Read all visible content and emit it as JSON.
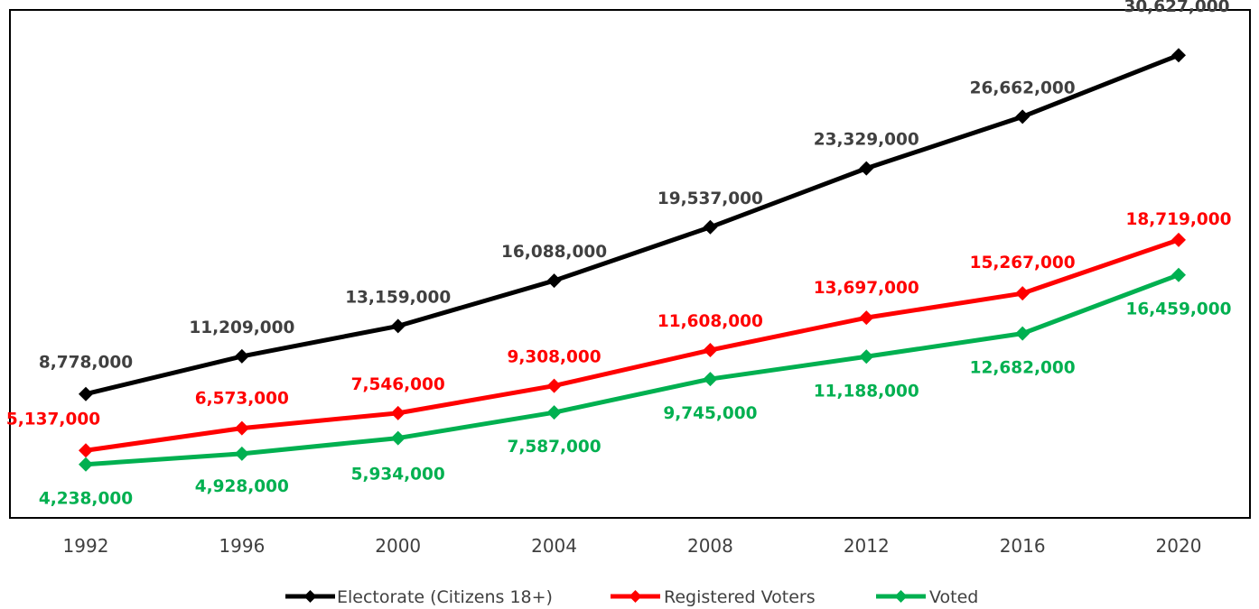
{
  "chart_data": {
    "type": "line",
    "title": "",
    "xlabel": "",
    "ylabel": "",
    "categories": [
      "1992",
      "1996",
      "2000",
      "2004",
      "2008",
      "2012",
      "2016",
      "2020"
    ],
    "ylim": [
      3000000,
      32500000
    ],
    "grid": false,
    "legend_position": "bottom",
    "series": [
      {
        "name": "Electorate (Citizens 18+)",
        "color": "#000000",
        "label_color": "#404040",
        "values": [
          8778000,
          11209000,
          13159000,
          16088000,
          19537000,
          23329000,
          26662000,
          30627000
        ],
        "labels": [
          "8,778,000",
          "11,209,000",
          "13,159,000",
          "16,088,000",
          "19,537,000",
          "23,329,000",
          "26,662,000",
          "30,627,000"
        ]
      },
      {
        "name": "Registered Voters",
        "color": "#ff0000",
        "label_color": "#ff0000",
        "values": [
          5137000,
          6573000,
          7546000,
          9308000,
          11608000,
          13697000,
          15267000,
          18719000
        ],
        "labels": [
          "5,137,000",
          "6,573,000",
          "7,546,000",
          "9,308,000",
          "11,608,000",
          "13,697,000",
          "15,267,000",
          "18,719,000"
        ]
      },
      {
        "name": "Voted",
        "color": "#00b050",
        "label_color": "#00b050",
        "values": [
          4238000,
          4928000,
          5934000,
          7587000,
          9745000,
          11188000,
          12682000,
          16459000
        ],
        "labels": [
          "4,238,000",
          "4,928,000",
          "5,934,000",
          "7,587,000",
          "9,745,000",
          "11,188,000",
          "12,682,000",
          "16,459,000"
        ]
      }
    ]
  }
}
